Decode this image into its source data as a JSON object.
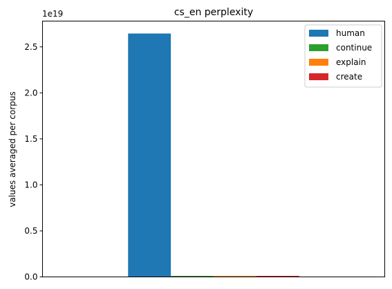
{
  "chart_data": {
    "type": "bar",
    "title": "cs_en perplexity",
    "xlabel": "",
    "ylabel": "values averaged per corpus",
    "scale_label": "1e19",
    "y_unit_multiplier": 1e+19,
    "ylim": [
      0,
      2.78
    ],
    "yticks": [
      "0.0",
      "0.5",
      "1.0",
      "1.5",
      "2.0",
      "2.5"
    ],
    "grid": false,
    "legend_placement": "top-right",
    "categories": [
      ""
    ],
    "series": [
      {
        "name": "human",
        "values": [
          2.645
        ],
        "color": "#1f77b4"
      },
      {
        "name": "continue",
        "values": [
          0.004
        ],
        "color": "#2ca02c"
      },
      {
        "name": "explain",
        "values": [
          0.004
        ],
        "color": "#ff7f0e"
      },
      {
        "name": "create",
        "values": [
          0.004
        ],
        "color": "#d62728"
      }
    ]
  }
}
